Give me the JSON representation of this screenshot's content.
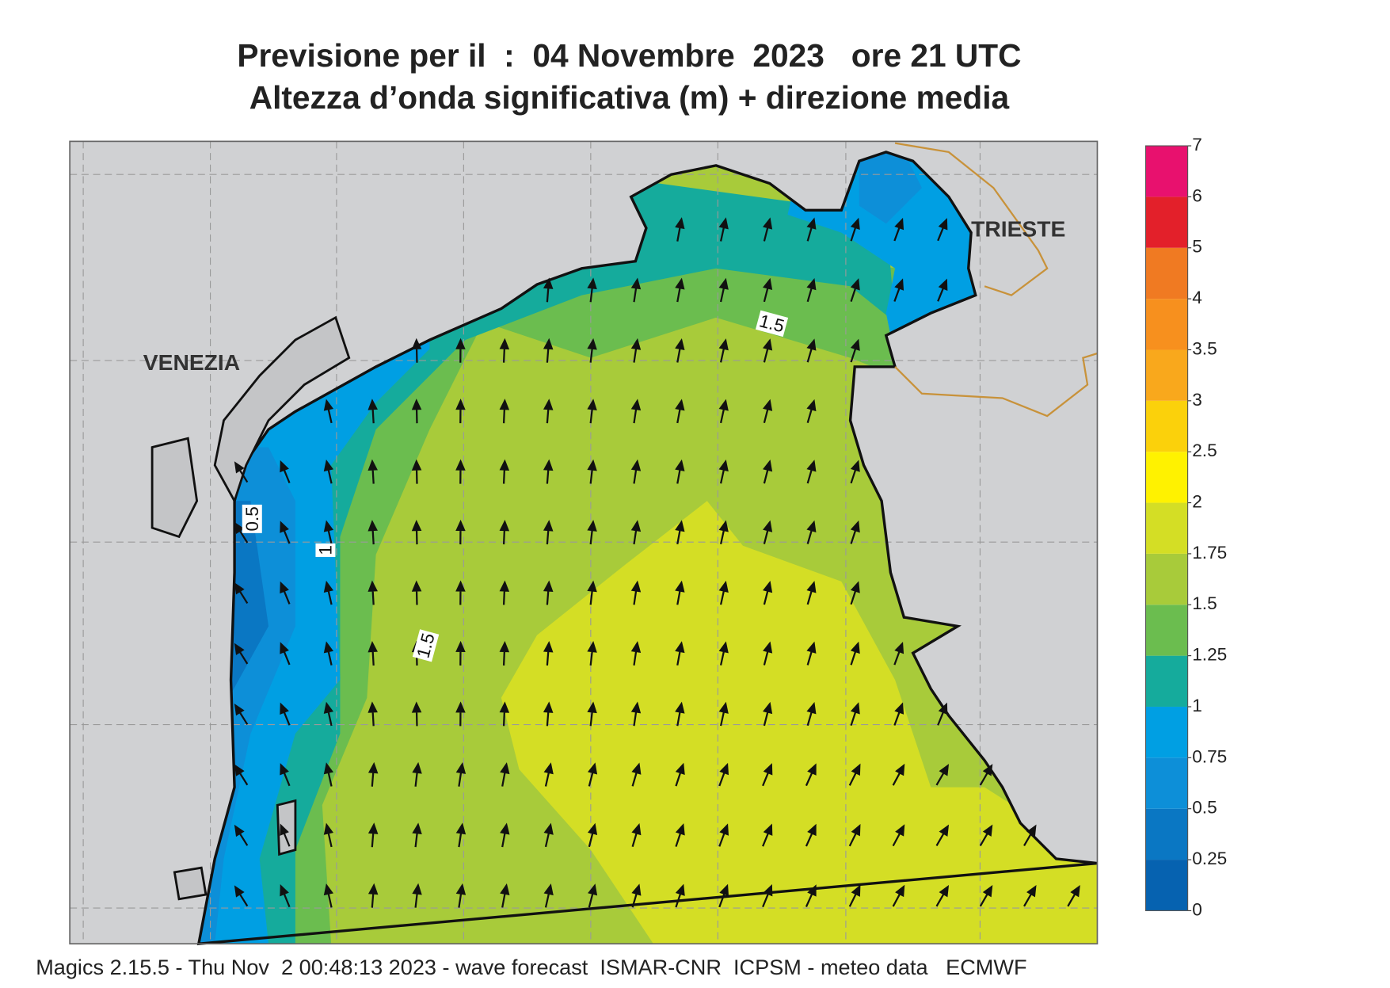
{
  "title": [
    "Previsione per il  :  04 Novembre  2023   ore 21 UTC",
    "Altezza d’onda significativa (m) + direzione media"
  ],
  "places": [
    "VENEZIA",
    "TRIESTE"
  ],
  "contour_labels": [
    0.5,
    1,
    1.5,
    1.5
  ],
  "colorbar": {
    "ticks": [
      0,
      0.25,
      0.5,
      0.75,
      1,
      1.25,
      1.5,
      1.75,
      2,
      2.5,
      3,
      3.5,
      4,
      5,
      6,
      7
    ],
    "colors": [
      "#0662b0",
      "#0a77c3",
      "#0d8fd8",
      "#009fe3",
      "#15ab9c",
      "#6bbd4f",
      "#a8cb3a",
      "#d4de25",
      "#fff200",
      "#fbd10b",
      "#f9a81c",
      "#f7901e",
      "#f07a22",
      "#e3202a",
      "#e8116e"
    ]
  },
  "footer": "Magics 2.15.5 - Thu Nov  2 00:48:13 2023 - wave forecast  ISMAR-CNR  ICPSM - meteo data   ECMWF"
}
